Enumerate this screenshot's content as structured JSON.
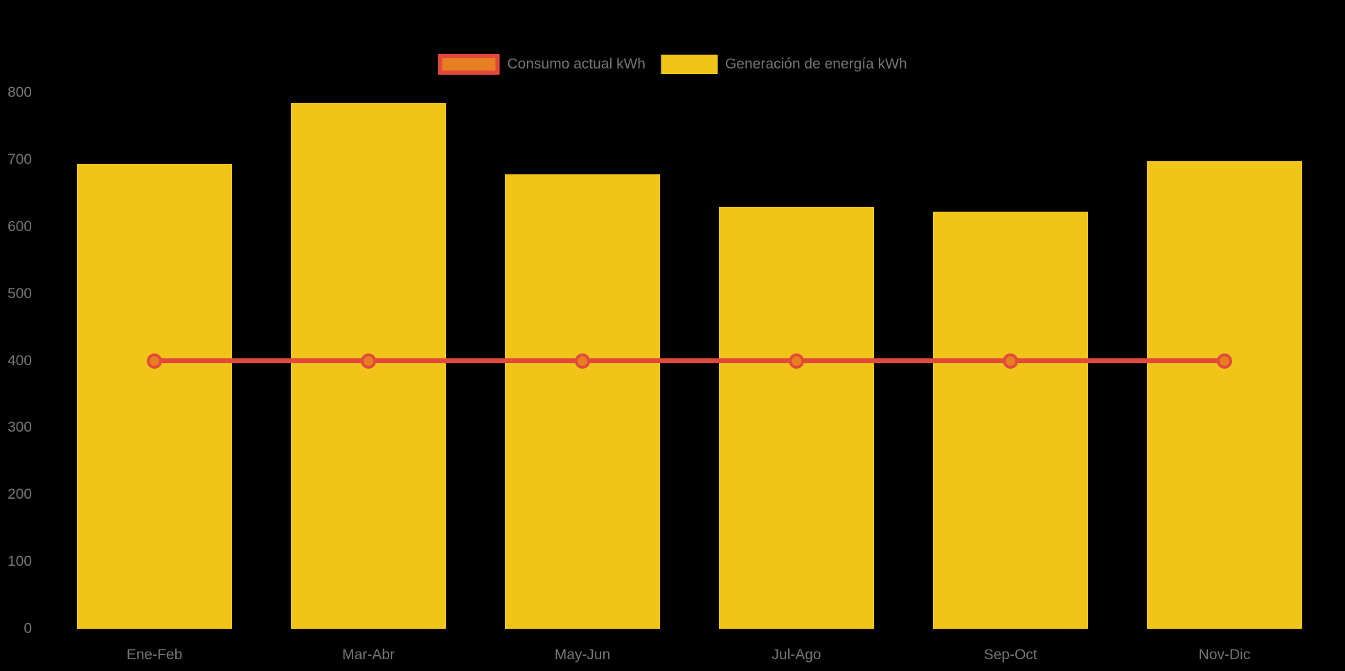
{
  "background": "#000000",
  "legend": {
    "items": [
      {
        "label": "Consumo actual kWh",
        "series_type": "line",
        "swatch_fill": "#e67e22",
        "swatch_border": "#e2493b"
      },
      {
        "label": "Generación de energía kWh",
        "series_type": "bar",
        "swatch_fill": "#f0c419"
      }
    ]
  },
  "chart_data": {
    "type": "bar",
    "title": "",
    "xlabel": "",
    "ylabel": "",
    "categories": [
      "Ene-Feb",
      "Mar-Abr",
      "May-Jun",
      "Jul-Ago",
      "Sep-Oct",
      "Nov-Dic"
    ],
    "series": [
      {
        "name": "Generación de energía kWh",
        "type": "bar",
        "color": "#f0c419",
        "values": [
          694,
          785,
          678,
          630,
          622,
          698
        ]
      },
      {
        "name": "Consumo actual kWh",
        "type": "line",
        "color": "#e2493b",
        "marker_fill": "#e67e22",
        "values": [
          400,
          400,
          400,
          400,
          400,
          400
        ]
      }
    ],
    "ylim": [
      0,
      800
    ],
    "yticks": [
      0,
      100,
      200,
      300,
      400,
      500,
      600,
      700,
      800
    ],
    "grid": false,
    "legend_position": "top-center",
    "axis_text_color": "#767676",
    "background_color": "#000000"
  }
}
